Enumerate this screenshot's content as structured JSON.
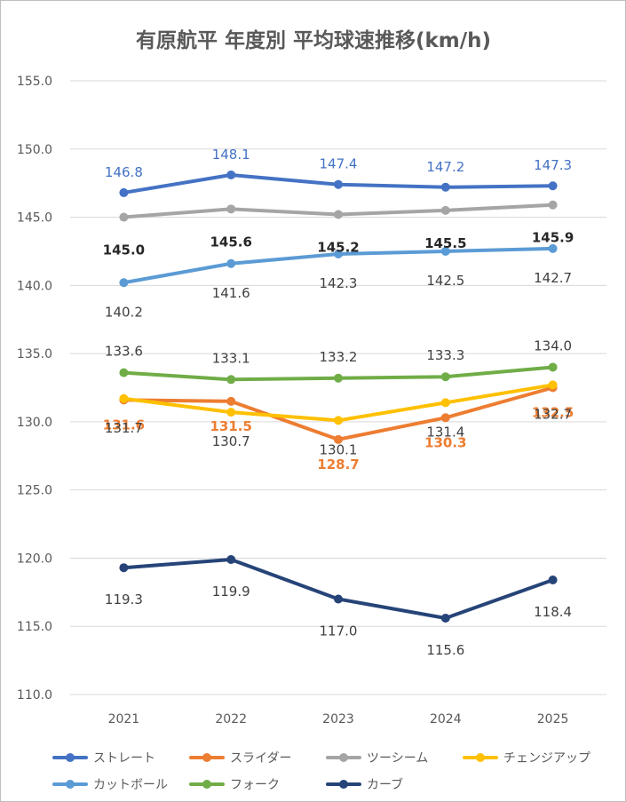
{
  "chart_data": {
    "type": "line",
    "title": "有原航平 年度別 平均球速推移(km/h)",
    "xlabel": "",
    "ylabel": "",
    "ylim": [
      110,
      155
    ],
    "yticks": [
      "110.0",
      "115.0",
      "120.0",
      "125.0",
      "130.0",
      "135.0",
      "140.0",
      "145.0",
      "150.0",
      "155.0"
    ],
    "categories": [
      "2021",
      "2022",
      "2023",
      "2024",
      "2025"
    ],
    "grid": true,
    "legend_position": "bottom",
    "series": [
      {
        "name": "ストレート",
        "color": "#4472c4",
        "values": [
          146.8,
          148.1,
          147.4,
          147.2,
          147.3
        ],
        "labels": [
          "146.8",
          "148.1",
          "147.4",
          "147.2",
          "147.3"
        ],
        "label_color": "#4472c4",
        "label_bold": false
      },
      {
        "name": "スライダー",
        "color": "#ed7d31",
        "values": [
          131.6,
          131.5,
          128.7,
          130.3,
          132.5
        ],
        "labels": [
          "131.6",
          "131.5",
          "128.7",
          "130.3",
          "132.5"
        ],
        "label_color": "#ed7d31",
        "label_bold": true
      },
      {
        "name": "ツーシーム",
        "color": "#a5a5a5",
        "values": [
          145.0,
          145.6,
          145.2,
          145.5,
          145.9
        ],
        "labels": [
          "145.0",
          "145.6",
          "145.2",
          "145.5",
          "145.9"
        ],
        "label_color": "#262626",
        "label_bold": true
      },
      {
        "name": "チェンジアップ",
        "color": "#ffc000",
        "values": [
          131.7,
          130.7,
          130.1,
          131.4,
          132.7
        ],
        "labels": [
          "131.7",
          "130.7",
          "130.1",
          "131.4",
          "132.7"
        ],
        "label_color": "#404040",
        "label_bold": false
      },
      {
        "name": "カットボール",
        "color": "#5b9bd5",
        "values": [
          140.2,
          141.6,
          142.3,
          142.5,
          142.7
        ],
        "labels": [
          "140.2",
          "141.6",
          "142.3",
          "142.5",
          "142.7"
        ],
        "label_color": "#404040",
        "label_bold": false
      },
      {
        "name": "フォーク",
        "color": "#70ad47",
        "values": [
          133.6,
          133.1,
          133.2,
          133.3,
          134.0
        ],
        "labels": [
          "133.6",
          "133.1",
          "133.2",
          "133.3",
          "134.0"
        ],
        "label_color": "#404040",
        "label_bold": false
      },
      {
        "name": "カーブ",
        "color": "#264478",
        "values": [
          119.3,
          119.9,
          117.0,
          115.6,
          118.4
        ],
        "labels": [
          "119.3",
          "119.9",
          "117.0",
          "115.6",
          "118.4"
        ],
        "label_color": "#404040",
        "label_bold": false
      }
    ]
  }
}
